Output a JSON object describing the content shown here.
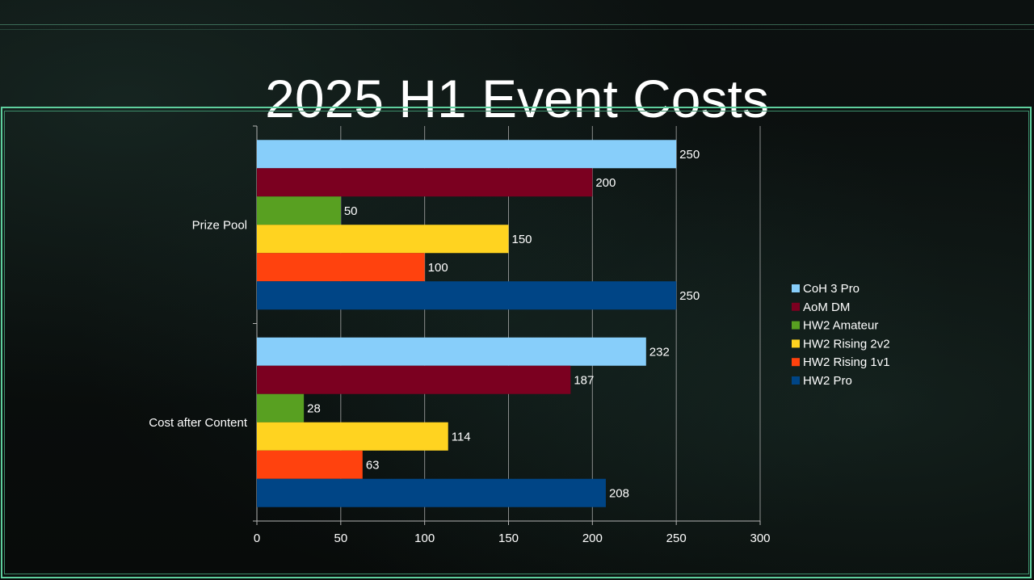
{
  "slide": {
    "title": "2025 H1 Event Costs"
  },
  "chart_data": {
    "type": "bar",
    "orientation": "horizontal",
    "title": "",
    "xlabel": "",
    "ylabel": "",
    "categories": [
      "Prize Pool",
      "Cost after Content"
    ],
    "series": [
      {
        "name": "CoH 3 Pro",
        "color": "#87cefa",
        "values": [
          250,
          232
        ]
      },
      {
        "name": "AoM DM",
        "color": "#7b0020",
        "values": [
          200,
          187
        ]
      },
      {
        "name": "HW2 Amateur",
        "color": "#58a021",
        "values": [
          50,
          28
        ]
      },
      {
        "name": "HW2 Rising 2v2",
        "color": "#ffd320",
        "values": [
          150,
          114
        ]
      },
      {
        "name": "HW2 Rising 1v1",
        "color": "#ff420e",
        "values": [
          100,
          63
        ]
      },
      {
        "name": "HW2 Pro",
        "color": "#004586",
        "values": [
          250,
          208
        ]
      }
    ],
    "xlim": [
      0,
      300
    ],
    "xticks": [
      "0",
      "50",
      "100",
      "150",
      "200",
      "250",
      "300"
    ],
    "grid": "vertical",
    "data_labels": true,
    "legend_position": "right"
  }
}
